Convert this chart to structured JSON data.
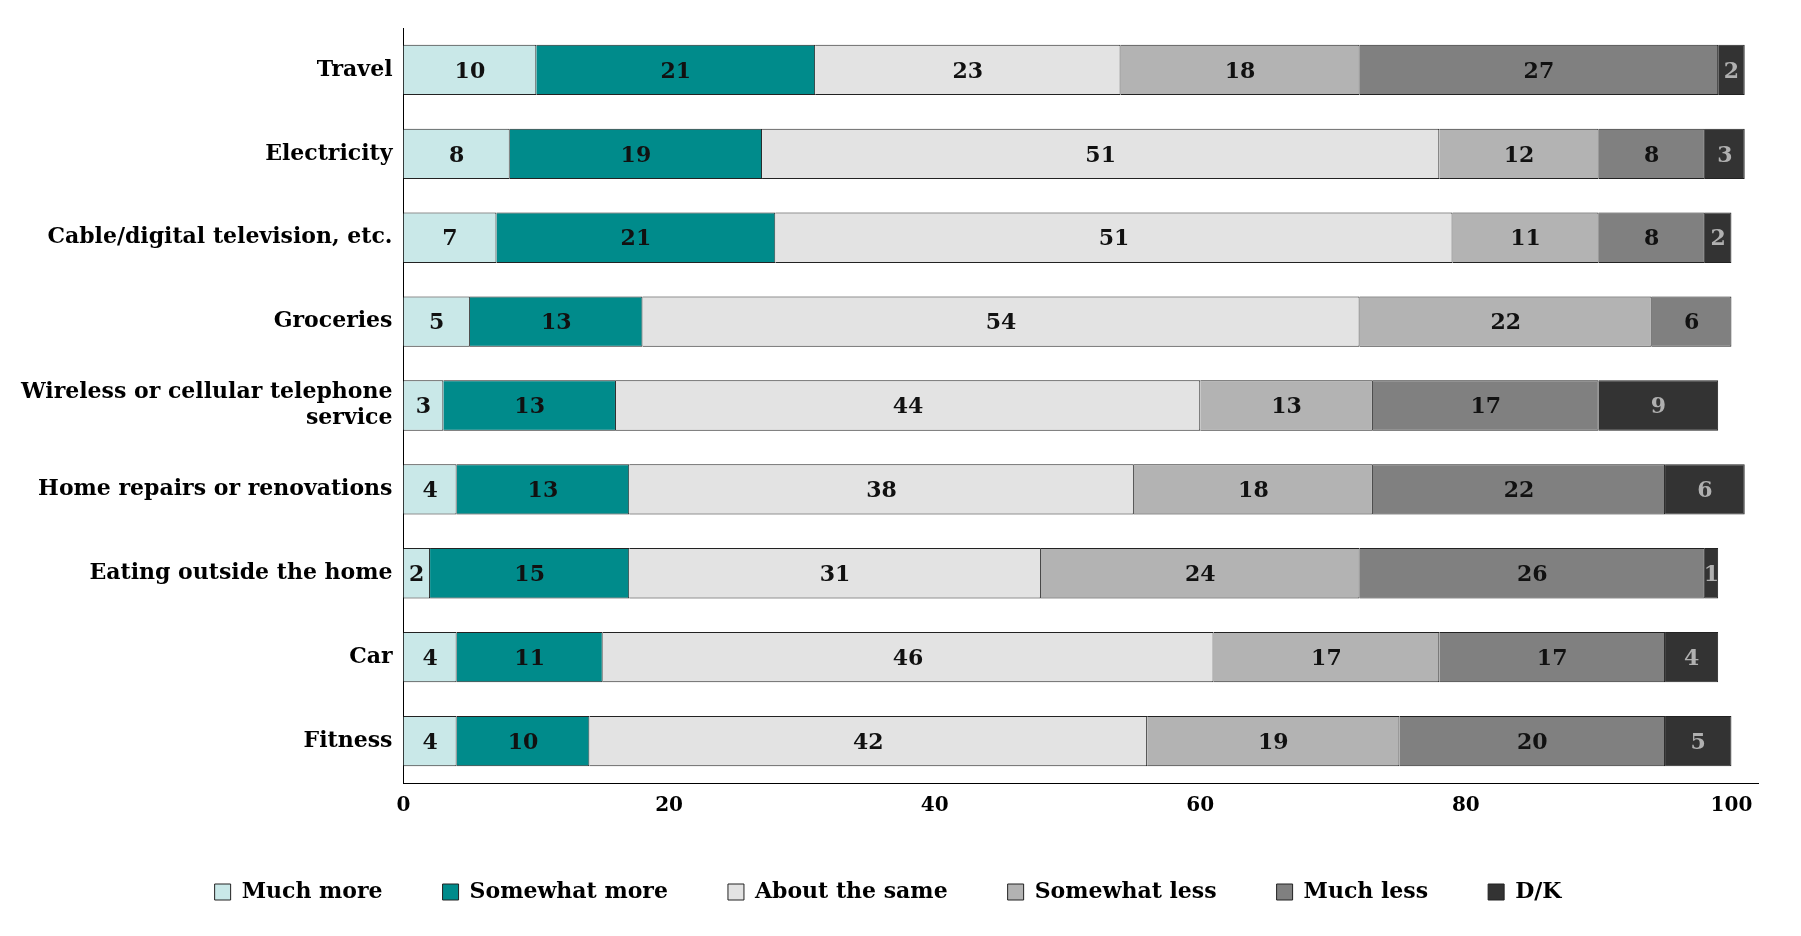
{
  "chart_data": {
    "type": "bar",
    "orientation": "horizontal",
    "stacked": true,
    "data_labels": true,
    "legend": "bottom",
    "grid": false,
    "categories": [
      "Travel",
      "Electricity",
      "Cable/digital television, etc.",
      "Groceries",
      "Wireless or cellular telephone service",
      "Home repairs or renovations",
      "Eating outside the home",
      "Car",
      "Fitness"
    ],
    "xlim": [
      0,
      102
    ],
    "xticks": [
      0,
      20,
      40,
      60,
      80,
      100
    ],
    "series": [
      {
        "name": "Much more",
        "color": "#c9e8e8",
        "values": [
          10,
          8,
          7,
          5,
          3,
          4,
          2,
          4,
          4
        ]
      },
      {
        "name": "Somewhat more",
        "color": "#008b8b",
        "values": [
          21,
          19,
          21,
          13,
          13,
          13,
          15,
          11,
          10
        ]
      },
      {
        "name": "About the same",
        "color": "#e3e3e3",
        "values": [
          23,
          51,
          51,
          54,
          44,
          38,
          31,
          46,
          42
        ]
      },
      {
        "name": "Somewhat less",
        "color": "#b3b3b3",
        "values": [
          18,
          12,
          11,
          22,
          13,
          18,
          24,
          17,
          19
        ]
      },
      {
        "name": "Much less",
        "color": "#808080",
        "values": [
          27,
          8,
          8,
          6,
          17,
          22,
          26,
          17,
          20
        ]
      },
      {
        "name": "D/K",
        "color": "#333333",
        "values": [
          2,
          3,
          2,
          null,
          9,
          6,
          1,
          4,
          5
        ]
      }
    ]
  }
}
